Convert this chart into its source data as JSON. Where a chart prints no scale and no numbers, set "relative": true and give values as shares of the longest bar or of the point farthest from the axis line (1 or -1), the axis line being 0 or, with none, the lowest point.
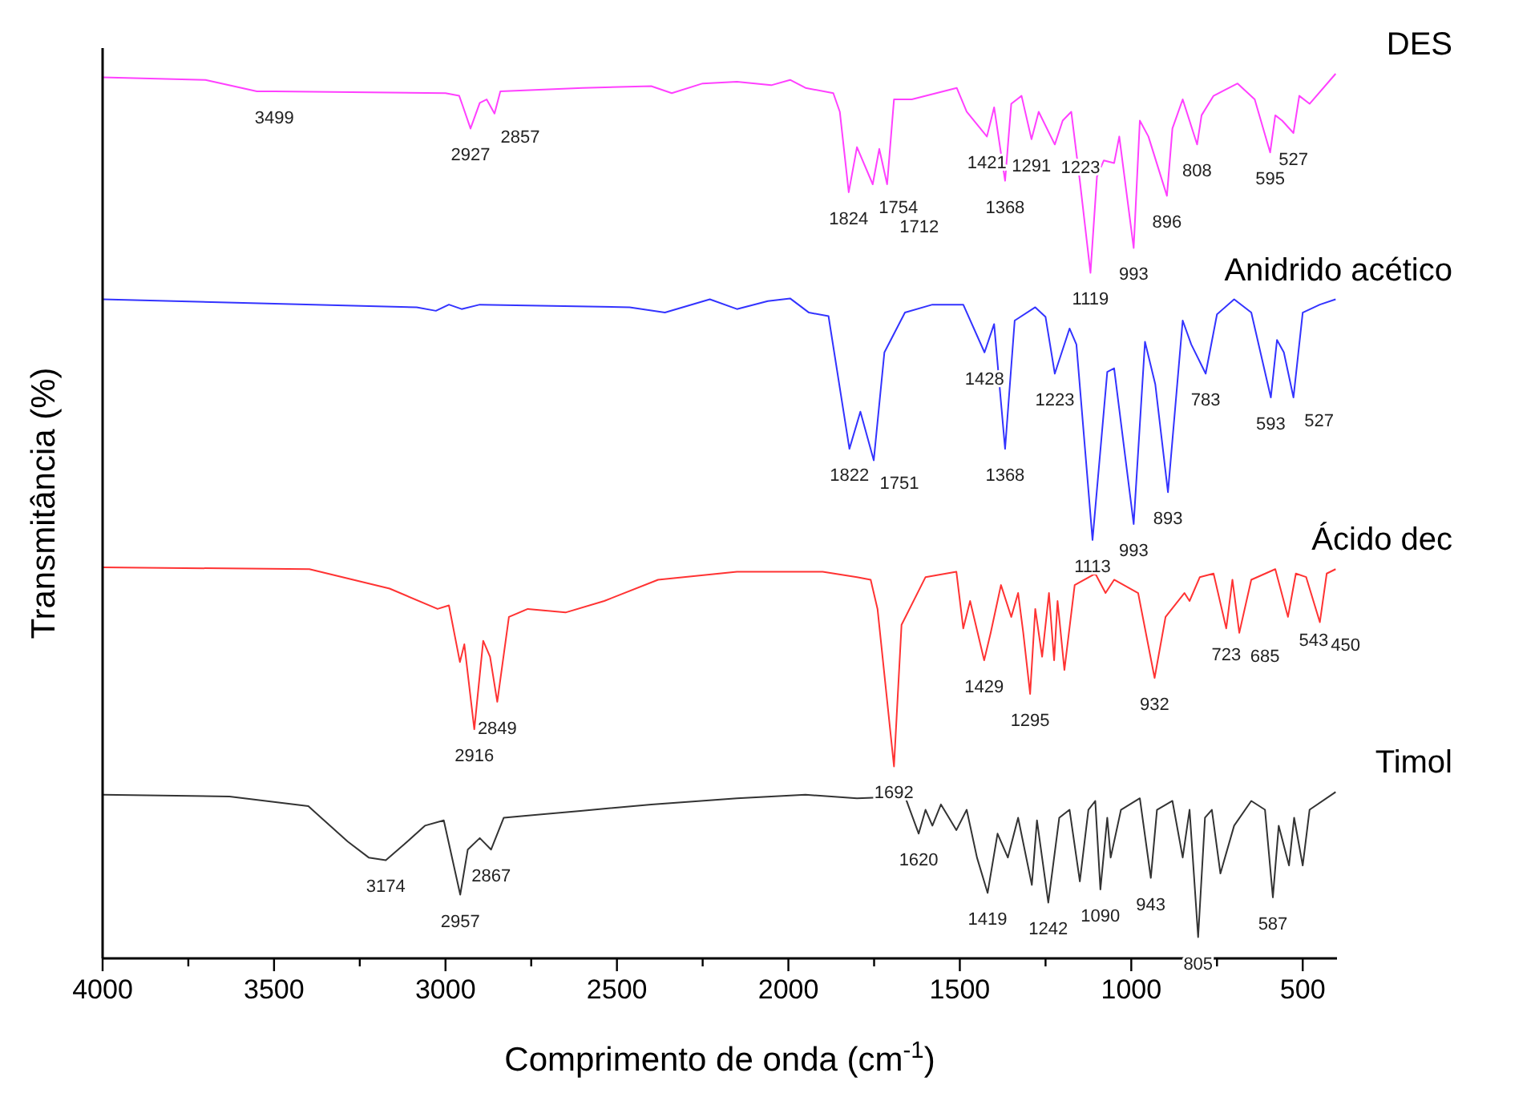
{
  "chart_data": {
    "type": "line",
    "relative": true,
    "xlabel": "Comprimento de onda (cm$^{-1}$)",
    "ylabel": "Transmitância (%)",
    "xlim": [
      4000,
      400
    ],
    "xticks": [
      4000,
      {
        "value": 3750,
        "label": null
      },
      3500,
      {
        "value": 3250,
        "label": null
      },
      3000,
      {
        "value": 2750,
        "label": null
      },
      2500,
      {
        "value": 2250,
        "label": null
      },
      2000,
      {
        "value": 1750,
        "label": null
      },
      1500,
      {
        "value": 1250,
        "label": null
      },
      1000,
      {
        "value": 750,
        "label": null
      },
      500
    ],
    "line_style": "solid",
    "marker": "none",
    "series": [
      {
        "name": "DES",
        "color": "#ff40ff",
        "x": [
          4000,
          3700,
          3550,
          3499,
          3000,
          2960,
          2950,
          2927,
          2900,
          2880,
          2857,
          2840,
          2600,
          2400,
          2340,
          2250,
          2150,
          2050,
          1995,
          1950,
          1869,
          1850,
          1824,
          1800,
          1754,
          1735,
          1712,
          1692,
          1640,
          1509,
          1480,
          1421,
          1400,
          1368,
          1350,
          1320,
          1291,
          1270,
          1223,
          1200,
          1175,
          1150,
          1119,
          1100,
          1080,
          1050,
          1035,
          993,
          975,
          950,
          896,
          880,
          850,
          808,
          795,
          760,
          690,
          640,
          595,
          580,
          560,
          527,
          510,
          480,
          404
        ],
        "values": [
          0.996,
          0.993,
          0.98,
          0.98,
          0.978,
          0.975,
          0.964,
          0.938,
          0.967,
          0.971,
          0.955,
          0.98,
          0.984,
          0.986,
          0.978,
          0.989,
          0.991,
          0.987,
          0.993,
          0.984,
          0.978,
          0.957,
          0.866,
          0.917,
          0.875,
          0.915,
          0.875,
          0.971,
          0.971,
          0.984,
          0.957,
          0.929,
          0.962,
          0.879,
          0.966,
          0.975,
          0.926,
          0.957,
          0.92,
          0.947,
          0.957,
          0.879,
          0.775,
          0.884,
          0.902,
          0.899,
          0.929,
          0.803,
          0.947,
          0.929,
          0.862,
          0.938,
          0.971,
          0.92,
          0.953,
          0.975,
          0.989,
          0.971,
          0.911,
          0.953,
          0.947,
          0.933,
          0.975,
          0.966,
          1.0
        ]
      },
      {
        "name": "Anidrido acético",
        "color": "#3333ff",
        "x": [
          4000,
          3084,
          3028,
          2990,
          2953,
          2900,
          2463,
          2360,
          2229,
          2150,
          2060,
          1995,
          1940,
          1883,
          1822,
          1790,
          1751,
          1720,
          1660,
          1580,
          1490,
          1428,
          1400,
          1368,
          1340,
          1280,
          1250,
          1223,
          1180,
          1160,
          1113,
          1070,
          1050,
          993,
          960,
          930,
          893,
          850,
          825,
          783,
          750,
          700,
          650,
          593,
          575,
          555,
          527,
          500,
          450,
          404
        ],
        "values": [
          0.745,
          0.736,
          0.732,
          0.739,
          0.734,
          0.739,
          0.736,
          0.73,
          0.745,
          0.734,
          0.743,
          0.746,
          0.73,
          0.726,
          0.576,
          0.618,
          0.563,
          0.685,
          0.73,
          0.739,
          0.739,
          0.685,
          0.717,
          0.576,
          0.721,
          0.736,
          0.725,
          0.661,
          0.712,
          0.694,
          0.473,
          0.663,
          0.667,
          0.491,
          0.697,
          0.649,
          0.527,
          0.721,
          0.694,
          0.661,
          0.728,
          0.745,
          0.73,
          0.634,
          0.699,
          0.685,
          0.634,
          0.73,
          0.739,
          0.745
        ]
      },
      {
        "name": "Ácido dec",
        "color": "#ff3333",
        "x": [
          4000,
          3397,
          3163,
          3023,
          2990,
          2958,
          2945,
          2916,
          2890,
          2870,
          2849,
          2815,
          2760,
          2650,
          2537,
          2380,
          2150,
          1900,
          1800,
          1760,
          1740,
          1692,
          1670,
          1600,
          1510,
          1490,
          1470,
          1429,
          1410,
          1380,
          1350,
          1330,
          1315,
          1295,
          1280,
          1260,
          1240,
          1225,
          1215,
          1195,
          1165,
          1105,
          1075,
          1050,
          980,
          932,
          900,
          845,
          830,
          800,
          760,
          723,
          705,
          685,
          650,
          580,
          543,
          520,
          490,
          450,
          430,
          404
        ],
        "values": [
          0.442,
          0.44,
          0.418,
          0.395,
          0.399,
          0.335,
          0.355,
          0.259,
          0.359,
          0.341,
          0.29,
          0.386,
          0.395,
          0.391,
          0.404,
          0.428,
          0.437,
          0.437,
          0.431,
          0.428,
          0.395,
          0.217,
          0.377,
          0.431,
          0.437,
          0.373,
          0.404,
          0.337,
          0.368,
          0.422,
          0.386,
          0.413,
          0.368,
          0.299,
          0.395,
          0.341,
          0.413,
          0.337,
          0.404,
          0.326,
          0.422,
          0.435,
          0.413,
          0.428,
          0.413,
          0.317,
          0.386,
          0.413,
          0.404,
          0.431,
          0.435,
          0.373,
          0.428,
          0.368,
          0.428,
          0.44,
          0.386,
          0.435,
          0.431,
          0.38,
          0.435,
          0.44
        ]
      },
      {
        "name": "Timol",
        "color": "#333333",
        "x": [
          4000,
          3630,
          3400,
          3285,
          3224,
          3174,
          3120,
          3060,
          3005,
          2957,
          2935,
          2900,
          2867,
          2830,
          2600,
          2400,
          2150,
          1950,
          1800,
          1660,
          1620,
          1600,
          1580,
          1555,
          1510,
          1480,
          1450,
          1419,
          1390,
          1360,
          1330,
          1290,
          1275,
          1242,
          1210,
          1180,
          1150,
          1125,
          1105,
          1090,
          1070,
          1060,
          1030,
          975,
          943,
          925,
          880,
          850,
          830,
          805,
          785,
          765,
          740,
          700,
          650,
          610,
          587,
          570,
          540,
          525,
          500,
          480,
          404
        ],
        "values": [
          0.185,
          0.183,
          0.172,
          0.132,
          0.114,
          0.111,
          0.129,
          0.15,
          0.156,
          0.072,
          0.123,
          0.136,
          0.123,
          0.159,
          0.167,
          0.174,
          0.181,
          0.185,
          0.181,
          0.183,
          0.141,
          0.168,
          0.15,
          0.174,
          0.145,
          0.168,
          0.114,
          0.074,
          0.141,
          0.114,
          0.159,
          0.083,
          0.156,
          0.063,
          0.159,
          0.168,
          0.087,
          0.168,
          0.178,
          0.078,
          0.159,
          0.114,
          0.168,
          0.181,
          0.091,
          0.168,
          0.178,
          0.114,
          0.168,
          0.024,
          0.159,
          0.168,
          0.096,
          0.15,
          0.178,
          0.168,
          0.069,
          0.15,
          0.105,
          0.159,
          0.105,
          0.168,
          0.188
        ]
      }
    ],
    "annotations": [
      {
        "text": "3499",
        "x": 3499,
        "y": 0.98
      },
      {
        "text": "2927",
        "x": 2927,
        "y": 0.938
      },
      {
        "text": "2857",
        "x": 2857,
        "y": 0.955
      },
      {
        "text": "1824",
        "x": 1824,
        "y": 0.866
      },
      {
        "text": "1754",
        "x": 1754,
        "y": 0.875
      },
      {
        "text": "1712",
        "x": 1712,
        "y": 0.875
      },
      {
        "text": "1421",
        "x": 1421,
        "y": 0.929
      },
      {
        "text": "1368",
        "x": 1368,
        "y": 0.879
      },
      {
        "text": "1291",
        "x": 1291,
        "y": 0.926
      },
      {
        "text": "1223",
        "x": 1223,
        "y": 0.92
      },
      {
        "text": "1119",
        "x": 1119,
        "y": 0.775
      },
      {
        "text": "993",
        "x": 993,
        "y": 0.803
      },
      {
        "text": "896",
        "x": 896,
        "y": 0.862
      },
      {
        "text": "808",
        "x": 808,
        "y": 0.92
      },
      {
        "text": "595",
        "x": 595,
        "y": 0.911
      },
      {
        "text": "527",
        "x": 527,
        "y": 0.933
      },
      {
        "text": "1822",
        "x": 1822,
        "y": 0.576
      },
      {
        "text": "1751",
        "x": 1751,
        "y": 0.563
      },
      {
        "text": "1428",
        "x": 1428,
        "y": 0.685
      },
      {
        "text": "1368",
        "x": 1368,
        "y": 0.576
      },
      {
        "text": "1223",
        "x": 1223,
        "y": 0.661
      },
      {
        "text": "1113",
        "x": 1113,
        "y": 0.473
      },
      {
        "text": "993",
        "x": 993,
        "y": 0.491
      },
      {
        "text": "893",
        "x": 893,
        "y": 0.527
      },
      {
        "text": "783",
        "x": 783,
        "y": 0.661
      },
      {
        "text": "593",
        "x": 593,
        "y": 0.634
      },
      {
        "text": "527",
        "x": 527,
        "y": 0.634
      },
      {
        "text": "2916",
        "x": 2916,
        "y": 0.259
      },
      {
        "text": "2849",
        "x": 2849,
        "y": 0.29
      },
      {
        "text": "1692",
        "x": 1692,
        "y": 0.217
      },
      {
        "text": "1429",
        "x": 1429,
        "y": 0.337
      },
      {
        "text": "1295",
        "x": 1295,
        "y": 0.299
      },
      {
        "text": "932",
        "x": 932,
        "y": 0.317
      },
      {
        "text": "723",
        "x": 723,
        "y": 0.373
      },
      {
        "text": "685",
        "x": 685,
        "y": 0.368
      },
      {
        "text": "543",
        "x": 543,
        "y": 0.386
      },
      {
        "text": "450",
        "x": 450,
        "y": 0.38
      },
      {
        "text": "3174",
        "x": 3174,
        "y": 0.111
      },
      {
        "text": "2957",
        "x": 2957,
        "y": 0.072
      },
      {
        "text": "2867",
        "x": 2867,
        "y": 0.123
      },
      {
        "text": "1620",
        "x": 1620,
        "y": 0.141
      },
      {
        "text": "1419",
        "x": 1419,
        "y": 0.074
      },
      {
        "text": "1242",
        "x": 1242,
        "y": 0.063
      },
      {
        "text": "1090",
        "x": 1090,
        "y": 0.078
      },
      {
        "text": "943",
        "x": 943,
        "y": 0.091
      },
      {
        "text": "805",
        "x": 805,
        "y": 0.024
      },
      {
        "text": "587",
        "x": 587,
        "y": 0.069
      }
    ]
  }
}
